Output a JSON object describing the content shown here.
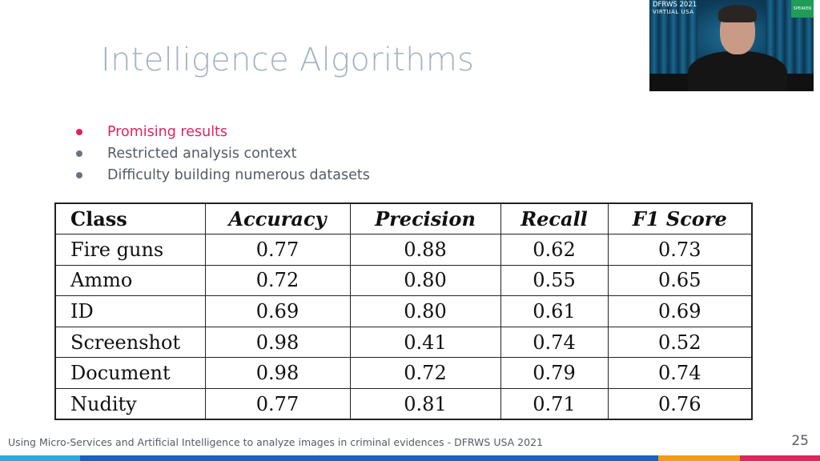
{
  "slide": {
    "title": "Intelligence Algorithms",
    "bullets": [
      {
        "text": "Promising results",
        "highlighted": true
      },
      {
        "text": "Restricted analysis context",
        "highlighted": false
      },
      {
        "text": "Difficulty building numerous datasets",
        "highlighted": false
      }
    ],
    "table": {
      "headers": [
        "Class",
        "Accuracy",
        "Precision",
        "Recall",
        "F1 Score"
      ],
      "rows": [
        [
          "Fire guns",
          "0.77",
          "0.88",
          "0.62",
          "0.73"
        ],
        [
          "Ammo",
          "0.72",
          "0.80",
          "0.55",
          "0.65"
        ],
        [
          "ID",
          "0.69",
          "0.80",
          "0.61",
          "0.69"
        ],
        [
          "Screenshot",
          "0.98",
          "0.41",
          "0.74",
          "0.52"
        ],
        [
          "Document",
          "0.98",
          "0.72",
          "0.79",
          "0.74"
        ],
        [
          "Nudity",
          "0.77",
          "0.81",
          "0.71",
          "0.76"
        ]
      ]
    },
    "footer": "Using Micro-Services and Artificial Intelligence to analyze images in criminal evidences - DFRWS USA 2021",
    "page_number": "25"
  },
  "speaker_video": {
    "logo_line1": "DFRWS 2021",
    "logo_line2": "VIRTUAL USA",
    "badge": "SPEAKER"
  },
  "colors": {
    "title": "#a4b2c3",
    "highlight": "#e0245e",
    "body_text": "#555b64",
    "bottom_bar": [
      "#29a9e0",
      "#1565c0",
      "#f39c12",
      "#e0245e"
    ]
  }
}
